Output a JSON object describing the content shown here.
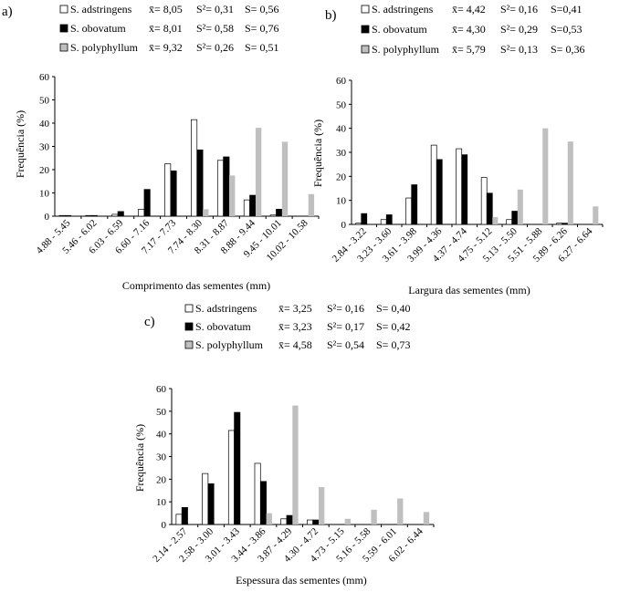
{
  "chart_data": [
    {
      "type": "bar",
      "panel": "a)",
      "categories": [
        "4.88 - 5.45",
        "5.46 - 6.02",
        "6.03 - 6.59",
        "6.60 - 7.16",
        "7.17 - 7.73",
        "7.74 - 8.30",
        "8.31 - 8.87",
        "8.88 - 9.44",
        "9.45 - 10.01",
        "10.02 - 10.58"
      ],
      "series": [
        {
          "name": "S. adstringens",
          "values": [
            0.3,
            0.3,
            0.8,
            3,
            22.5,
            41.5,
            24,
            7,
            0.5,
            0
          ],
          "color": "#ffffff",
          "stats": {
            "mean": "x̄= 8,05",
            "var": "S²= 0,31",
            "sd": "S= 0,56"
          }
        },
        {
          "name": "S. obovatum",
          "values": [
            0.3,
            0.3,
            2,
            11.5,
            19.5,
            28.5,
            25.5,
            9,
            3,
            0
          ],
          "color": "#000000",
          "stats": {
            "mean": "x̄= 8,01",
            "var": "S²= 0,58",
            "sd": "S= 0,76"
          }
        },
        {
          "name": "S. polyphyllum",
          "values": [
            0,
            0,
            0,
            0,
            0,
            3,
            17.5,
            38,
            32,
            9.5
          ],
          "color": "#bfbfbf",
          "stats": {
            "mean": "x̄= 9,32",
            "var": "S²= 0,26",
            "sd": "S= 0,51"
          }
        }
      ],
      "xlabel": "Comprimento das sementes (mm)",
      "ylabel": "Frequência (%)",
      "ylim": [
        0,
        60
      ],
      "yticks": [
        "0",
        "10",
        "20",
        "30",
        "40",
        "50",
        "60"
      ]
    },
    {
      "type": "bar",
      "panel": "b)",
      "categories": [
        "2.84 - 3.22",
        "3.23 - 3.60",
        "3.61 - 3.98",
        "3.99 - 4.36",
        "4.37 - 4.74",
        "4.75 - 5.12",
        "5.13 - 5.50",
        "5.51 - 5.88",
        "5.89 - 6.26",
        "6.27 - 6.64"
      ],
      "series": [
        {
          "name": "S. adstringens",
          "values": [
            0.5,
            2,
            11,
            33,
            31.5,
            19.5,
            2,
            0,
            0.5,
            0
          ],
          "color": "#ffffff",
          "stats": {
            "mean": "x̄= 4,42",
            "var": "S²= 0,16",
            "sd": "S=0,41"
          }
        },
        {
          "name": "S. obovatum",
          "values": [
            4.5,
            4,
            16.5,
            27,
            29,
            13,
            5.5,
            0,
            0.5,
            0
          ],
          "color": "#000000",
          "stats": {
            "mean": "x̄= 4,30",
            "var": "S²= 0,29",
            "sd": "S=0,53"
          }
        },
        {
          "name": "S. polyphyllum",
          "values": [
            0,
            0,
            0,
            0,
            0,
            3,
            14.5,
            40,
            34.5,
            7.5
          ],
          "color": "#bfbfbf",
          "stats": {
            "mean": "x̄= 5,79",
            "var": "S²= 0,13",
            "sd": "S= 0,36"
          }
        }
      ],
      "xlabel": "Largura das sementes (mm)",
      "ylabel": "Frequência (%)",
      "ylim": [
        0,
        60
      ],
      "yticks": [
        "0",
        "10",
        "20",
        "30",
        "40",
        "50",
        "60"
      ]
    },
    {
      "type": "bar",
      "panel": "c)",
      "categories": [
        "2.14 - 2.57",
        "2.58 - 3.00",
        "3.01 - 3.43",
        "3.44 - 3.86",
        "3.87 - 4.29",
        "4.30 - 4.72",
        "4.73 - 5.15",
        "5.16 - 5.58",
        "5.59 - 6.01",
        "6.02 - 6.44"
      ],
      "series": [
        {
          "name": "S. adstringens",
          "values": [
            4.5,
            22.5,
            41.5,
            27,
            2.5,
            2,
            0,
            0,
            0,
            0
          ],
          "color": "#ffffff",
          "stats": {
            "mean": "x̄= 3,25",
            "var": "S²= 0,16",
            "sd": "S= 0,40"
          }
        },
        {
          "name": "S. obovatum",
          "values": [
            7.5,
            18,
            49.5,
            19,
            4,
            2,
            0,
            0,
            0,
            0
          ],
          "color": "#000000",
          "stats": {
            "mean": "x̄= 3,23",
            "var": "S²= 0,17",
            "sd": "S= 0,42"
          }
        },
        {
          "name": "S. polyphyllum",
          "values": [
            0,
            0,
            0,
            5,
            52.5,
            16.5,
            2.5,
            6.5,
            11.5,
            5.5
          ],
          "color": "#bfbfbf",
          "stats": {
            "mean": "x̄= 4,58",
            "var": "S²= 0,54",
            "sd": "S= 0,73"
          }
        }
      ],
      "xlabel": "Espessura das sementes (mm)",
      "ylabel": "Frequência (%)",
      "ylim": [
        0,
        60
      ],
      "yticks": [
        "0",
        "10",
        "20",
        "30",
        "40",
        "50",
        "60"
      ]
    }
  ]
}
